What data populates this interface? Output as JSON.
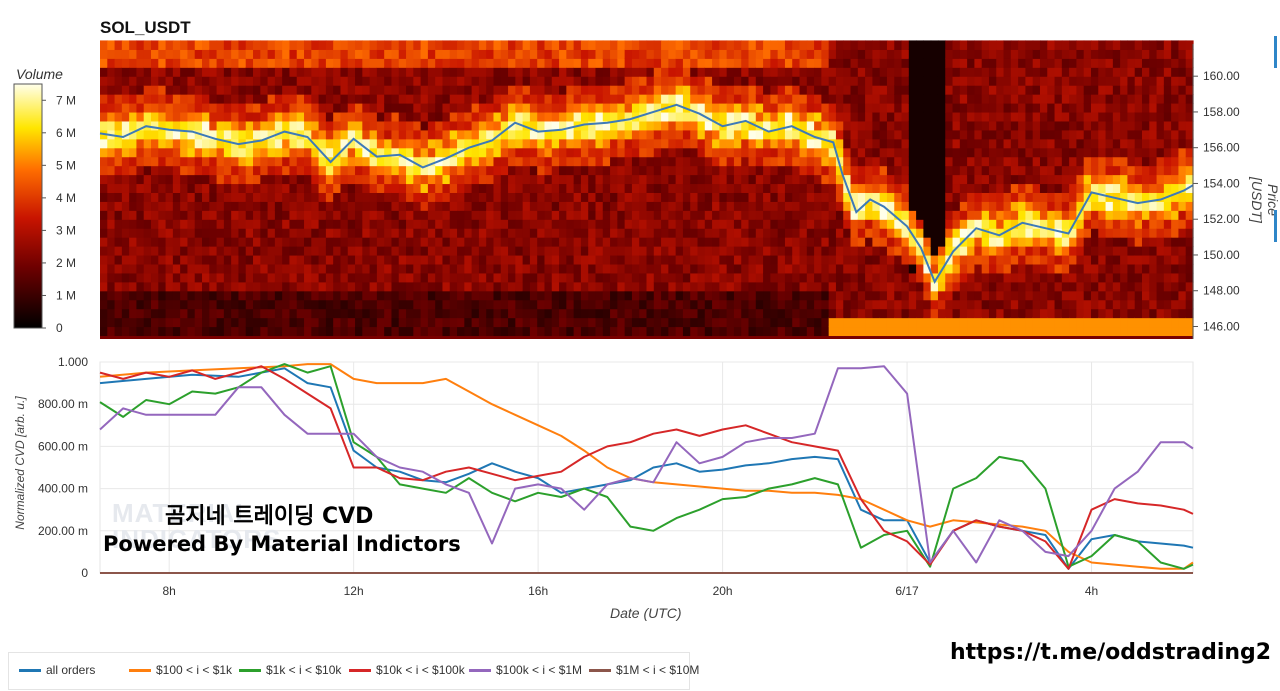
{
  "title": "SOL_USDT",
  "colorbar": {
    "label": "Volume",
    "ticks": [
      "7 M",
      "6 M",
      "5 M",
      "4 M",
      "3 M",
      "2 M",
      "1 M",
      "0"
    ]
  },
  "price_axis": {
    "label": "Price [USDT]",
    "ticks": [
      "160.00",
      "158.00",
      "156.00",
      "154.00",
      "152.00",
      "150.00",
      "148.00",
      "146.00"
    ]
  },
  "bottom_axis": {
    "ylabel": "Normalized CVD [arb. u.]",
    "yticks": [
      "1.000",
      "800.00 m",
      "600.00 m",
      "400.00 m",
      "200.00 m",
      "0"
    ],
    "xlabel": "Date (UTC)",
    "xticks": [
      "8h",
      "12h",
      "16h",
      "20h",
      "6/17",
      "4h"
    ]
  },
  "watermark": {
    "line1": "곰지네 트레이딩 CVD",
    "line2": "Powered By Material Indictors",
    "logo": "MATERIAL INDICATORS"
  },
  "url": "https://t.me/oddstrading2",
  "legend": [
    {
      "name": "all orders",
      "color": "#1f77b4"
    },
    {
      "name": "$100 < i < $1k",
      "color": "#ff7f0e"
    },
    {
      "name": "$1k < i < $10k",
      "color": "#2ca02c"
    },
    {
      "name": "$10k < i < $100k",
      "color": "#d62728"
    },
    {
      "name": "$100k < i < $1M",
      "color": "#9467bd"
    },
    {
      "name": "$1M < i < $10M",
      "color": "#8c564b"
    }
  ],
  "chart_data": [
    {
      "type": "heatmap",
      "title": "SOL_USDT",
      "xlabel": "",
      "ylabel": "Price [USDT]",
      "ylim": [
        145.3,
        161.8
      ],
      "colorbar_range": [
        0,
        7500000
      ],
      "time_range_hours": [
        6.5,
        30.2
      ],
      "price_line": {
        "color": "#3d7ab8",
        "x": [
          6.5,
          7.0,
          7.5,
          8.0,
          8.5,
          9.0,
          9.5,
          10.0,
          10.5,
          11.0,
          11.5,
          12.0,
          12.5,
          13.0,
          13.5,
          14.0,
          14.5,
          15.0,
          15.5,
          16.0,
          16.5,
          17.0,
          17.5,
          18.0,
          18.5,
          19.0,
          19.5,
          20.0,
          20.5,
          21.0,
          21.5,
          22.0,
          22.4,
          22.6,
          22.9,
          23.2,
          23.5,
          24.0,
          24.3,
          24.6,
          25.0,
          25.5,
          26.0,
          26.5,
          27.0,
          27.5,
          28.0,
          28.5,
          29.0,
          29.5,
          30.0,
          30.2
        ],
        "y": [
          156.8,
          156.6,
          157.2,
          157.0,
          156.9,
          156.5,
          156.2,
          156.4,
          156.9,
          156.6,
          155.2,
          156.5,
          155.5,
          155.6,
          154.9,
          155.4,
          156.0,
          156.4,
          157.4,
          156.9,
          157.0,
          157.3,
          157.4,
          157.6,
          158.0,
          158.4,
          157.9,
          157.2,
          157.5,
          156.9,
          157.2,
          156.6,
          156.3,
          154.5,
          152.4,
          153.1,
          152.7,
          151.6,
          150.4,
          148.5,
          150.2,
          151.5,
          151.1,
          151.8,
          151.5,
          151.2,
          153.5,
          153.2,
          152.9,
          153.1,
          153.6,
          153.9
        ]
      }
    },
    {
      "type": "line",
      "title": "",
      "xlabel": "Date (UTC)",
      "ylabel": "Normalized CVD [arb. u.]",
      "ylim": [
        0,
        1
      ],
      "xlim": [
        6.5,
        30.2
      ],
      "x_ticks": [
        "8h",
        "12h",
        "16h",
        "20h",
        "6/17",
        "4h"
      ],
      "series": [
        {
          "name": "all orders",
          "color": "#1f77b4",
          "x": [
            6.5,
            7.5,
            8.5,
            9.5,
            10.5,
            11.0,
            11.5,
            12.0,
            12.5,
            13.0,
            13.5,
            14.0,
            14.5,
            15.0,
            15.5,
            16.0,
            16.5,
            17.0,
            17.5,
            18.0,
            18.5,
            19.0,
            19.5,
            20.0,
            20.5,
            21.0,
            21.5,
            22.0,
            22.5,
            23.0,
            23.5,
            24.0,
            24.5,
            25.0,
            25.5,
            26.0,
            26.5,
            27.0,
            27.5,
            28.0,
            28.5,
            29.0,
            29.5,
            30.0,
            30.2
          ],
          "y": [
            0.9,
            0.92,
            0.94,
            0.93,
            0.97,
            0.9,
            0.88,
            0.58,
            0.5,
            0.48,
            0.44,
            0.43,
            0.47,
            0.52,
            0.48,
            0.45,
            0.38,
            0.4,
            0.42,
            0.44,
            0.5,
            0.52,
            0.48,
            0.49,
            0.51,
            0.52,
            0.54,
            0.55,
            0.54,
            0.3,
            0.25,
            0.25,
            0.05,
            0.2,
            0.25,
            0.22,
            0.2,
            0.18,
            0.02,
            0.16,
            0.18,
            0.15,
            0.14,
            0.13,
            0.12
          ]
        },
        {
          "name": "$100 < i < $1k",
          "color": "#ff7f0e",
          "x": [
            6.5,
            7.5,
            8.5,
            9.5,
            10.5,
            11.0,
            11.5,
            12.0,
            12.5,
            13.0,
            13.5,
            14.0,
            14.5,
            15.0,
            15.5,
            16.0,
            16.5,
            17.0,
            17.5,
            18.0,
            18.5,
            19.0,
            19.5,
            20.0,
            20.5,
            21.0,
            21.5,
            22.0,
            22.5,
            23.0,
            23.5,
            24.0,
            24.5,
            25.0,
            25.5,
            26.0,
            26.5,
            27.0,
            27.5,
            28.0,
            28.5,
            29.0,
            29.5,
            30.0,
            30.2
          ],
          "y": [
            0.93,
            0.95,
            0.96,
            0.97,
            0.98,
            0.99,
            0.99,
            0.92,
            0.9,
            0.9,
            0.9,
            0.92,
            0.86,
            0.8,
            0.75,
            0.7,
            0.65,
            0.58,
            0.5,
            0.45,
            0.43,
            0.42,
            0.41,
            0.4,
            0.39,
            0.39,
            0.38,
            0.38,
            0.37,
            0.35,
            0.3,
            0.25,
            0.22,
            0.25,
            0.24,
            0.23,
            0.22,
            0.2,
            0.1,
            0.05,
            0.04,
            0.03,
            0.02,
            0.02,
            0.05
          ]
        },
        {
          "name": "$1k < i < $10k",
          "color": "#2ca02c",
          "x": [
            6.5,
            7.0,
            7.5,
            8.0,
            8.5,
            9.0,
            9.5,
            10.0,
            10.5,
            11.0,
            11.5,
            12.0,
            12.5,
            13.0,
            13.5,
            14.0,
            14.5,
            15.0,
            15.5,
            16.0,
            16.5,
            17.0,
            17.5,
            18.0,
            18.5,
            19.0,
            19.5,
            20.0,
            20.5,
            21.0,
            21.5,
            22.0,
            22.5,
            23.0,
            23.5,
            24.0,
            24.5,
            25.0,
            25.5,
            26.0,
            26.5,
            27.0,
            27.5,
            28.0,
            28.5,
            29.0,
            29.5,
            30.0,
            30.2
          ],
          "y": [
            0.81,
            0.74,
            0.82,
            0.8,
            0.86,
            0.85,
            0.88,
            0.95,
            0.99,
            0.95,
            0.98,
            0.62,
            0.55,
            0.42,
            0.4,
            0.38,
            0.45,
            0.38,
            0.34,
            0.38,
            0.36,
            0.4,
            0.36,
            0.22,
            0.2,
            0.26,
            0.3,
            0.35,
            0.36,
            0.4,
            0.42,
            0.45,
            0.42,
            0.12,
            0.18,
            0.2,
            0.03,
            0.4,
            0.45,
            0.55,
            0.53,
            0.4,
            0.03,
            0.08,
            0.18,
            0.15,
            0.05,
            0.02,
            0.04
          ]
        },
        {
          "name": "$10k < i < $100k",
          "color": "#d62728",
          "x": [
            6.5,
            7.0,
            7.5,
            8.0,
            8.5,
            9.0,
            9.5,
            10.0,
            10.5,
            11.0,
            11.5,
            12.0,
            12.5,
            13.0,
            13.5,
            14.0,
            14.5,
            15.0,
            15.5,
            16.0,
            16.5,
            17.0,
            17.5,
            18.0,
            18.5,
            19.0,
            19.5,
            20.0,
            20.5,
            21.0,
            21.5,
            22.0,
            22.5,
            23.0,
            23.5,
            24.0,
            24.5,
            25.0,
            25.5,
            26.0,
            26.5,
            27.0,
            27.5,
            28.0,
            28.5,
            29.0,
            29.5,
            30.0,
            30.2
          ],
          "y": [
            0.95,
            0.92,
            0.95,
            0.93,
            0.96,
            0.92,
            0.95,
            0.98,
            0.92,
            0.85,
            0.78,
            0.5,
            0.5,
            0.45,
            0.44,
            0.48,
            0.5,
            0.47,
            0.44,
            0.46,
            0.48,
            0.55,
            0.6,
            0.62,
            0.66,
            0.68,
            0.65,
            0.68,
            0.7,
            0.66,
            0.62,
            0.6,
            0.58,
            0.35,
            0.2,
            0.15,
            0.04,
            0.2,
            0.25,
            0.22,
            0.2,
            0.15,
            0.02,
            0.3,
            0.35,
            0.33,
            0.32,
            0.3,
            0.28
          ]
        },
        {
          "name": "$100k < i < $1M",
          "color": "#9467bd",
          "x": [
            6.5,
            7.0,
            7.5,
            8.0,
            8.5,
            9.0,
            9.5,
            10.0,
            10.5,
            11.0,
            11.5,
            12.0,
            12.5,
            13.0,
            13.5,
            14.0,
            14.5,
            15.0,
            15.5,
            16.0,
            16.5,
            17.0,
            17.5,
            18.0,
            18.5,
            19.0,
            19.5,
            20.0,
            20.5,
            21.0,
            21.5,
            22.0,
            22.5,
            23.0,
            23.5,
            24.0,
            24.5,
            25.0,
            25.5,
            26.0,
            26.5,
            27.0,
            27.5,
            28.0,
            28.5,
            29.0,
            29.5,
            30.0,
            30.2
          ],
          "y": [
            0.68,
            0.78,
            0.75,
            0.75,
            0.75,
            0.75,
            0.88,
            0.88,
            0.75,
            0.66,
            0.66,
            0.66,
            0.55,
            0.5,
            0.48,
            0.42,
            0.38,
            0.14,
            0.4,
            0.42,
            0.4,
            0.3,
            0.42,
            0.45,
            0.43,
            0.62,
            0.52,
            0.55,
            0.62,
            0.64,
            0.64,
            0.66,
            0.97,
            0.97,
            0.98,
            0.85,
            0.05,
            0.2,
            0.05,
            0.25,
            0.2,
            0.1,
            0.08,
            0.2,
            0.4,
            0.48,
            0.62,
            0.62,
            0.59
          ]
        },
        {
          "name": "$1M < i < $10M",
          "color": "#8c564b",
          "x": [
            6.5,
            30.2
          ],
          "y": [
            0,
            0
          ]
        }
      ]
    }
  ]
}
